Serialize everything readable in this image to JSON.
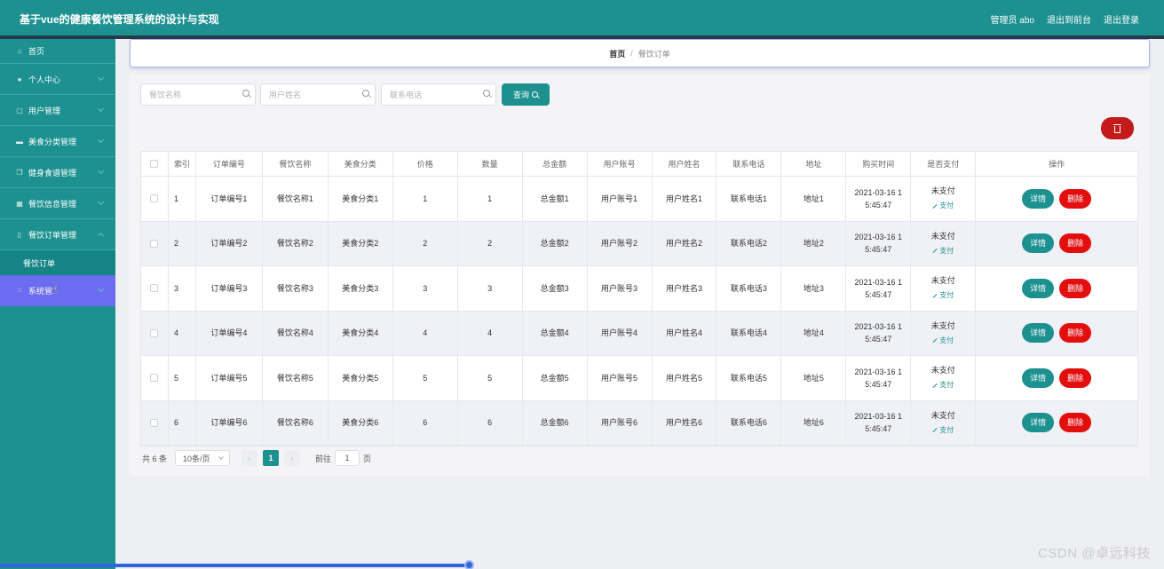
{
  "header": {
    "title": "基于vue的健康餐饮管理系统的设计与实现",
    "admin_label": "管理员 abo",
    "exit_front_label": "退出到前台",
    "logout_label": "退出登录"
  },
  "sidebar": {
    "items": [
      {
        "label": "首页",
        "icon": "home-icon"
      },
      {
        "label": "个人中心",
        "icon": "user-icon"
      },
      {
        "label": "用户管理",
        "icon": "frame-icon"
      },
      {
        "label": "美食分类管理",
        "icon": "briefcase-icon"
      },
      {
        "label": "健身食谱管理",
        "icon": "copy-icon"
      },
      {
        "label": "餐饮信息管理",
        "icon": "grid-icon"
      },
      {
        "label": "餐饮订单管理",
        "icon": "mobile-icon"
      },
      {
        "label": "系统管",
        "icon": "apps-icon"
      }
    ],
    "sub_item": "餐饮订单"
  },
  "breadcrumb": {
    "home": "首页",
    "current": "餐饮订单"
  },
  "search": {
    "food_name_placeholder": "餐饮名称",
    "user_name_placeholder": "用户姓名",
    "phone_placeholder": "联系电话",
    "query_label": "查询"
  },
  "table": {
    "columns": [
      "索引",
      "订单编号",
      "餐饮名称",
      "美食分类",
      "价格",
      "数量",
      "总金额",
      "用户账号",
      "用户姓名",
      "联系电话",
      "地址",
      "购买时间",
      "是否支付",
      "操作"
    ],
    "rows": [
      {
        "index": "1",
        "order_no": "订单编号1",
        "food_name": "餐饮名称1",
        "category": "美食分类1",
        "price": "1",
        "qty": "1",
        "total": "总金额1",
        "account": "用户账号1",
        "user_name": "用户姓名1",
        "phone": "联系电话1",
        "address": "地址1",
        "time_line1": "2021-03-16 1",
        "time_line2": "5:45:47",
        "paid_status": "未支付",
        "pay_action": "支付",
        "detail_label": "详情",
        "delete_label": "删除"
      },
      {
        "index": "2",
        "order_no": "订单编号2",
        "food_name": "餐饮名称2",
        "category": "美食分类2",
        "price": "2",
        "qty": "2",
        "total": "总金额2",
        "account": "用户账号2",
        "user_name": "用户姓名2",
        "phone": "联系电话2",
        "address": "地址2",
        "time_line1": "2021-03-16 1",
        "time_line2": "5:45:47",
        "paid_status": "未支付",
        "pay_action": "支付",
        "detail_label": "详情",
        "delete_label": "删除"
      },
      {
        "index": "3",
        "order_no": "订单编号3",
        "food_name": "餐饮名称3",
        "category": "美食分类3",
        "price": "3",
        "qty": "3",
        "total": "总金额3",
        "account": "用户账号3",
        "user_name": "用户姓名3",
        "phone": "联系电话3",
        "address": "地址3",
        "time_line1": "2021-03-16 1",
        "time_line2": "5:45:47",
        "paid_status": "未支付",
        "pay_action": "支付",
        "detail_label": "详情",
        "delete_label": "删除"
      },
      {
        "index": "4",
        "order_no": "订单编号4",
        "food_name": "餐饮名称4",
        "category": "美食分类4",
        "price": "4",
        "qty": "4",
        "total": "总金额4",
        "account": "用户账号4",
        "user_name": "用户姓名4",
        "phone": "联系电话4",
        "address": "地址4",
        "time_line1": "2021-03-16 1",
        "time_line2": "5:45:47",
        "paid_status": "未支付",
        "pay_action": "支付",
        "detail_label": "详情",
        "delete_label": "删除"
      },
      {
        "index": "5",
        "order_no": "订单编号5",
        "food_name": "餐饮名称5",
        "category": "美食分类5",
        "price": "5",
        "qty": "5",
        "total": "总金额5",
        "account": "用户账号5",
        "user_name": "用户姓名5",
        "phone": "联系电话5",
        "address": "地址5",
        "time_line1": "2021-03-16 1",
        "time_line2": "5:45:47",
        "paid_status": "未支付",
        "pay_action": "支付",
        "detail_label": "详情",
        "delete_label": "删除"
      },
      {
        "index": "6",
        "order_no": "订单编号6",
        "food_name": "餐饮名称6",
        "category": "美食分类6",
        "price": "6",
        "qty": "6",
        "total": "总金额6",
        "account": "用户账号6",
        "user_name": "用户姓名6",
        "phone": "联系电话6",
        "address": "地址6",
        "time_line1": "2021-03-16 1",
        "time_line2": "5:45:47",
        "paid_status": "未支付",
        "pay_action": "支付",
        "detail_label": "详情",
        "delete_label": "删除"
      }
    ]
  },
  "pagination": {
    "total_text": "共 6 条",
    "page_size": "10条/页",
    "prev": "‹",
    "current_page": "1",
    "next": "›",
    "goto_label": "前往",
    "goto_value": "1",
    "page_suffix": "页"
  },
  "watermark": "CSDN @卓远科技",
  "colors": {
    "primary": "#1d9090",
    "danger": "#e30e0e",
    "active_menu": "#6b6cf0",
    "delete_all": "#c31b1b"
  }
}
